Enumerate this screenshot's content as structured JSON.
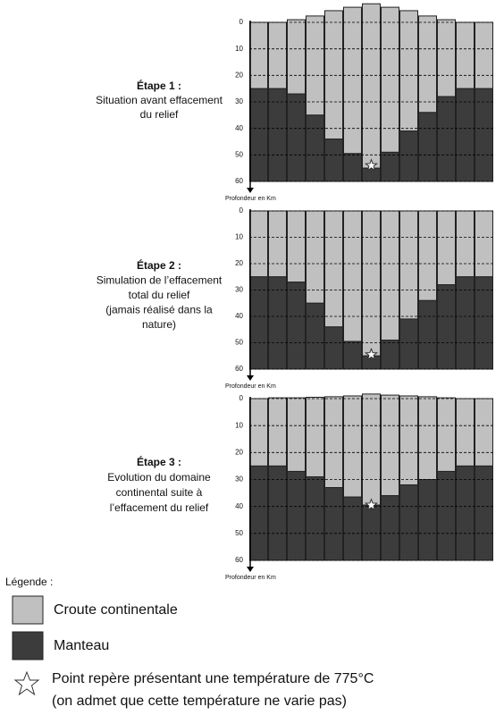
{
  "chart_data": [
    {
      "type": "section",
      "title": "Étape 1 :",
      "subtitle": [
        "Situation avant effacement",
        "du relief"
      ],
      "surface": [
        0,
        0,
        -1,
        -2.4,
        -4.4,
        -5.7,
        -7,
        -5.7,
        -4.4,
        -2.4,
        -1,
        0,
        0
      ],
      "moho": [
        25,
        25,
        27,
        35,
        44,
        49.5,
        55,
        49,
        41,
        34,
        28,
        25,
        25
      ],
      "marker": [
        null,
        null,
        null,
        null,
        null,
        null,
        54,
        null,
        null,
        null,
        null,
        null,
        null
      ],
      "ylim": [
        0,
        60
      ],
      "yticks": [
        0,
        10,
        20,
        30,
        40,
        50,
        60
      ],
      "ylabel": "Profondeur en Km",
      "grid": true,
      "crust_color": "#c0c0c0",
      "mantle_color": "#3c3c3c"
    },
    {
      "type": "section",
      "title": "Étape 2 :",
      "subtitle": [
        "Simulation de l’effacement",
        "total du relief",
        "(jamais réalisé dans la",
        "nature)"
      ],
      "surface": [
        0,
        0,
        0,
        0,
        0,
        0,
        0,
        0,
        0,
        0,
        0,
        0,
        0
      ],
      "moho": [
        25,
        25,
        27,
        35,
        44,
        49.5,
        55,
        49,
        41,
        34,
        28,
        25,
        25
      ],
      "marker": [
        null,
        null,
        null,
        null,
        null,
        null,
        54.5,
        null,
        null,
        null,
        null,
        null,
        null
      ],
      "ylim": [
        0,
        60
      ],
      "yticks": [
        0,
        10,
        20,
        30,
        40,
        50,
        60
      ],
      "ylabel": "Profondeur en Km",
      "grid": true,
      "crust_color": "#c0c0c0",
      "mantle_color": "#3c3c3c"
    },
    {
      "type": "section",
      "title": "Étape 3 :",
      "subtitle": [
        "Evolution du domaine",
        "continental suite à",
        "l’effacement du relief"
      ],
      "surface": [
        0,
        -0.3,
        -0.3,
        -0.5,
        -0.7,
        -1,
        -1.7,
        -1.3,
        -1,
        -0.7,
        -0.3,
        0,
        0
      ],
      "moho": [
        25,
        25,
        27,
        29,
        33,
        36.5,
        39.5,
        36,
        32,
        30,
        27,
        25,
        25
      ],
      "marker": [
        null,
        null,
        null,
        null,
        null,
        null,
        39.5,
        null,
        null,
        null,
        null,
        null,
        null
      ],
      "ylim": [
        0,
        60
      ],
      "yticks": [
        0,
        10,
        20,
        30,
        40,
        50,
        60
      ],
      "ylabel": "Profondeur en Km",
      "grid": true,
      "crust_color": "#c0c0c0",
      "mantle_color": "#3c3c3c"
    }
  ],
  "legend": {
    "title": "Légende :",
    "crust": "Croute continentale",
    "mantle": "Manteau",
    "marker": [
      "Point repère présentant une température de 775°C",
      "(on admet que cette température ne varie pas)"
    ]
  }
}
